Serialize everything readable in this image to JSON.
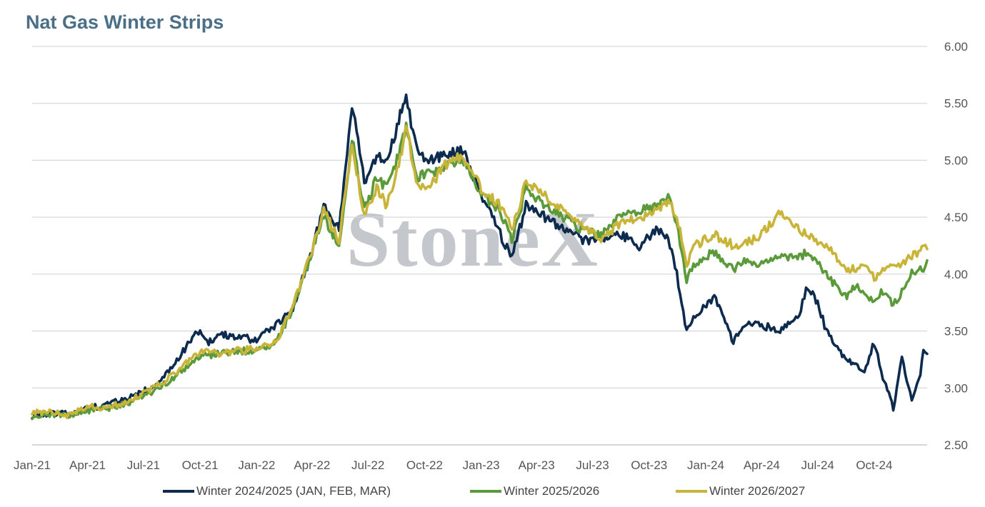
{
  "chart_data": {
    "type": "line",
    "title": "Nat Gas Winter Strips",
    "watermark": "StoneX",
    "x_tick_labels": [
      "Jan-21",
      "Apr-21",
      "Jul-21",
      "Oct-21",
      "Jan-22",
      "Apr-22",
      "Jul-22",
      "Oct-22",
      "Jan-23",
      "Apr-23",
      "Jul-23",
      "Oct-23",
      "Jan-24",
      "Apr-24",
      "Jul-24",
      "Oct-24"
    ],
    "y_tick_labels": [
      "2.50",
      "3.00",
      "3.50",
      "4.00",
      "4.50",
      "5.00",
      "5.50",
      "6.00"
    ],
    "ylim": [
      2.5,
      6.0
    ],
    "xlim": [
      "2021-01-01",
      "2024-12-26"
    ],
    "grid": true,
    "y_axis_side": "right",
    "legend_position": "bottom",
    "series": [
      {
        "name": "Winter 2024/2025 (JAN, FEB, MAR)",
        "color": "#0d2b4e",
        "points": [
          [
            "2021-01-01",
            2.76
          ],
          [
            "2021-02-01",
            2.78
          ],
          [
            "2021-03-01",
            2.77
          ],
          [
            "2021-04-01",
            2.82
          ],
          [
            "2021-05-01",
            2.85
          ],
          [
            "2021-06-01",
            2.9
          ],
          [
            "2021-07-01",
            2.97
          ],
          [
            "2021-08-01",
            3.08
          ],
          [
            "2021-09-01",
            3.3
          ],
          [
            "2021-10-01",
            3.52
          ],
          [
            "2021-10-15",
            3.4
          ],
          [
            "2021-11-01",
            3.48
          ],
          [
            "2021-12-01",
            3.45
          ],
          [
            "2022-01-01",
            3.42
          ],
          [
            "2022-02-01",
            3.55
          ],
          [
            "2022-03-01",
            3.7
          ],
          [
            "2022-04-01",
            4.2
          ],
          [
            "2022-04-20",
            4.6
          ],
          [
            "2022-05-15",
            4.4
          ],
          [
            "2022-06-05",
            5.5
          ],
          [
            "2022-06-25",
            4.8
          ],
          [
            "2022-07-15",
            5.05
          ],
          [
            "2022-08-01",
            4.98
          ],
          [
            "2022-08-20",
            5.35
          ],
          [
            "2022-09-01",
            5.55
          ],
          [
            "2022-09-20",
            5.05
          ],
          [
            "2022-10-15",
            5.0
          ],
          [
            "2022-11-01",
            5.05
          ],
          [
            "2022-12-01",
            5.1
          ],
          [
            "2023-01-01",
            4.7
          ],
          [
            "2023-02-01",
            4.35
          ],
          [
            "2023-02-20",
            4.15
          ],
          [
            "2023-03-15",
            4.6
          ],
          [
            "2023-04-15",
            4.5
          ],
          [
            "2023-05-15",
            4.4
          ],
          [
            "2023-06-15",
            4.3
          ],
          [
            "2023-07-15",
            4.3
          ],
          [
            "2023-08-15",
            4.35
          ],
          [
            "2023-09-15",
            4.25
          ],
          [
            "2023-10-15",
            4.4
          ],
          [
            "2023-11-01",
            4.3
          ],
          [
            "2023-11-15",
            4.0
          ],
          [
            "2023-12-01",
            3.5
          ],
          [
            "2023-12-15",
            3.65
          ],
          [
            "2024-01-15",
            3.8
          ],
          [
            "2024-02-15",
            3.4
          ],
          [
            "2024-03-01",
            3.55
          ],
          [
            "2024-04-01",
            3.55
          ],
          [
            "2024-05-01",
            3.5
          ],
          [
            "2024-06-01",
            3.65
          ],
          [
            "2024-06-15",
            3.9
          ],
          [
            "2024-07-01",
            3.75
          ],
          [
            "2024-07-15",
            3.5
          ],
          [
            "2024-08-15",
            3.25
          ],
          [
            "2024-09-01",
            3.2
          ],
          [
            "2024-09-15",
            3.15
          ],
          [
            "2024-10-01",
            3.4
          ],
          [
            "2024-10-15",
            3.1
          ],
          [
            "2024-11-01",
            2.82
          ],
          [
            "2024-11-15",
            3.25
          ],
          [
            "2024-12-01",
            2.9
          ],
          [
            "2024-12-15",
            3.1
          ],
          [
            "2024-12-20",
            3.35
          ],
          [
            "2024-12-26",
            3.3
          ]
        ]
      },
      {
        "name": "Winter 2025/2026",
        "color": "#5b9a3a",
        "points": [
          [
            "2021-01-01",
            2.75
          ],
          [
            "2021-02-01",
            2.77
          ],
          [
            "2021-03-01",
            2.75
          ],
          [
            "2021-04-01",
            2.8
          ],
          [
            "2021-05-01",
            2.82
          ],
          [
            "2021-06-01",
            2.86
          ],
          [
            "2021-07-01",
            2.92
          ],
          [
            "2021-08-01",
            3.02
          ],
          [
            "2021-09-01",
            3.15
          ],
          [
            "2021-10-01",
            3.28
          ],
          [
            "2021-11-01",
            3.3
          ],
          [
            "2021-12-01",
            3.32
          ],
          [
            "2022-01-01",
            3.33
          ],
          [
            "2022-02-01",
            3.4
          ],
          [
            "2022-03-01",
            3.7
          ],
          [
            "2022-04-01",
            4.2
          ],
          [
            "2022-04-20",
            4.5
          ],
          [
            "2022-05-15",
            4.25
          ],
          [
            "2022-06-05",
            5.2
          ],
          [
            "2022-06-25",
            4.55
          ],
          [
            "2022-07-15",
            4.85
          ],
          [
            "2022-08-01",
            4.75
          ],
          [
            "2022-08-20",
            5.05
          ],
          [
            "2022-09-01",
            5.3
          ],
          [
            "2022-09-20",
            4.85
          ],
          [
            "2022-10-15",
            4.9
          ],
          [
            "2022-11-01",
            4.95
          ],
          [
            "2022-12-01",
            5.0
          ],
          [
            "2023-01-01",
            4.7
          ],
          [
            "2023-02-01",
            4.55
          ],
          [
            "2023-02-20",
            4.3
          ],
          [
            "2023-03-15",
            4.75
          ],
          [
            "2023-04-15",
            4.6
          ],
          [
            "2023-05-15",
            4.5
          ],
          [
            "2023-06-15",
            4.38
          ],
          [
            "2023-07-15",
            4.35
          ],
          [
            "2023-08-15",
            4.5
          ],
          [
            "2023-09-15",
            4.55
          ],
          [
            "2023-10-15",
            4.6
          ],
          [
            "2023-11-01",
            4.68
          ],
          [
            "2023-11-15",
            4.45
          ],
          [
            "2023-12-01",
            3.95
          ],
          [
            "2023-12-15",
            4.1
          ],
          [
            "2024-01-15",
            4.2
          ],
          [
            "2024-02-15",
            4.05
          ],
          [
            "2024-03-01",
            4.1
          ],
          [
            "2024-04-01",
            4.1
          ],
          [
            "2024-05-01",
            4.15
          ],
          [
            "2024-06-01",
            4.15
          ],
          [
            "2024-06-15",
            4.2
          ],
          [
            "2024-07-01",
            4.1
          ],
          [
            "2024-07-15",
            4.0
          ],
          [
            "2024-08-15",
            3.8
          ],
          [
            "2024-09-01",
            3.9
          ],
          [
            "2024-09-15",
            3.8
          ],
          [
            "2024-10-01",
            3.75
          ],
          [
            "2024-10-15",
            3.85
          ],
          [
            "2024-11-01",
            3.72
          ],
          [
            "2024-11-15",
            3.85
          ],
          [
            "2024-12-01",
            4.0
          ],
          [
            "2024-12-15",
            4.05
          ],
          [
            "2024-12-20",
            4.05
          ],
          [
            "2024-12-26",
            4.12
          ]
        ]
      },
      {
        "name": "Winter 2026/2027",
        "color": "#c9b43a",
        "points": [
          [
            "2021-01-01",
            2.78
          ],
          [
            "2021-02-01",
            2.79
          ],
          [
            "2021-03-01",
            2.76
          ],
          [
            "2021-04-01",
            2.84
          ],
          [
            "2021-05-01",
            2.82
          ],
          [
            "2021-06-01",
            2.88
          ],
          [
            "2021-07-01",
            2.95
          ],
          [
            "2021-08-01",
            3.05
          ],
          [
            "2021-09-01",
            3.18
          ],
          [
            "2021-10-01",
            3.32
          ],
          [
            "2021-11-01",
            3.3
          ],
          [
            "2021-12-01",
            3.33
          ],
          [
            "2022-01-01",
            3.34
          ],
          [
            "2022-02-01",
            3.4
          ],
          [
            "2022-03-01",
            3.72
          ],
          [
            "2022-04-01",
            4.22
          ],
          [
            "2022-04-20",
            4.55
          ],
          [
            "2022-05-15",
            4.3
          ],
          [
            "2022-06-05",
            5.15
          ],
          [
            "2022-06-25",
            4.5
          ],
          [
            "2022-07-15",
            4.75
          ],
          [
            "2022-08-01",
            4.6
          ],
          [
            "2022-08-20",
            4.95
          ],
          [
            "2022-09-01",
            5.3
          ],
          [
            "2022-09-20",
            4.75
          ],
          [
            "2022-10-15",
            4.8
          ],
          [
            "2022-11-01",
            4.95
          ],
          [
            "2022-12-01",
            5.05
          ],
          [
            "2023-01-01",
            4.75
          ],
          [
            "2023-02-01",
            4.6
          ],
          [
            "2023-02-20",
            4.4
          ],
          [
            "2023-03-15",
            4.8
          ],
          [
            "2023-04-15",
            4.68
          ],
          [
            "2023-05-15",
            4.55
          ],
          [
            "2023-06-15",
            4.42
          ],
          [
            "2023-07-15",
            4.3
          ],
          [
            "2023-08-15",
            4.45
          ],
          [
            "2023-09-15",
            4.5
          ],
          [
            "2023-10-15",
            4.55
          ],
          [
            "2023-11-01",
            4.65
          ],
          [
            "2023-11-15",
            4.52
          ],
          [
            "2023-12-01",
            4.1
          ],
          [
            "2023-12-15",
            4.25
          ],
          [
            "2024-01-15",
            4.35
          ],
          [
            "2024-02-15",
            4.25
          ],
          [
            "2024-03-01",
            4.25
          ],
          [
            "2024-04-01",
            4.35
          ],
          [
            "2024-05-01",
            4.55
          ],
          [
            "2024-06-01",
            4.4
          ],
          [
            "2024-06-15",
            4.35
          ],
          [
            "2024-07-01",
            4.3
          ],
          [
            "2024-07-15",
            4.25
          ],
          [
            "2024-08-15",
            4.05
          ],
          [
            "2024-09-01",
            4.05
          ],
          [
            "2024-09-15",
            4.1
          ],
          [
            "2024-10-01",
            3.97
          ],
          [
            "2024-10-15",
            4.05
          ],
          [
            "2024-11-01",
            4.05
          ],
          [
            "2024-11-15",
            4.1
          ],
          [
            "2024-12-01",
            4.15
          ],
          [
            "2024-12-15",
            4.2
          ],
          [
            "2024-12-20",
            4.22
          ],
          [
            "2024-12-26",
            4.22
          ]
        ]
      }
    ]
  }
}
